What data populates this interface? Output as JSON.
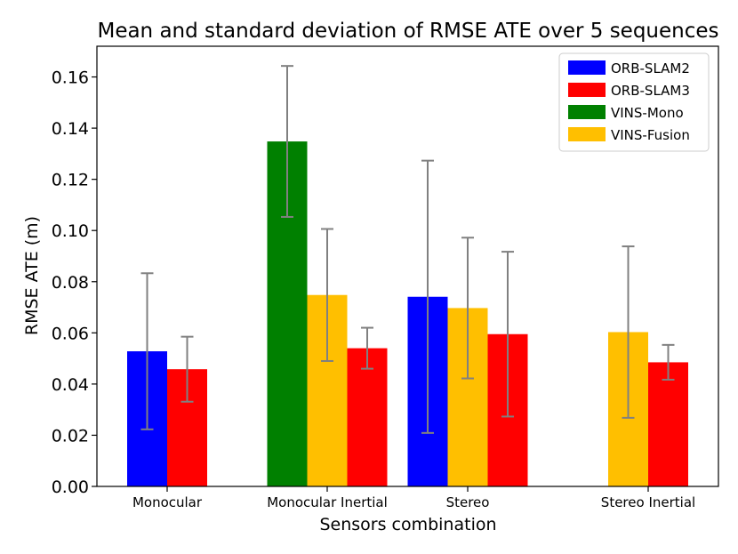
{
  "chart_data": {
    "type": "bar",
    "title": "Mean and standard deviation of RMSE ATE over 5 sequences",
    "xlabel": "Sensors combination",
    "ylabel": "RMSE ATE (m)",
    "ylim": [
      0,
      0.172
    ],
    "yticks": [
      "0.00",
      "0.02",
      "0.04",
      "0.06",
      "0.08",
      "0.10",
      "0.12",
      "0.14",
      "0.16"
    ],
    "grid": false,
    "legend_position": "top-right",
    "categories": [
      "Monocular",
      "Monocular Inertial",
      "Stereo",
      "Stereo Inertial"
    ],
    "error_bar_color": "#808080",
    "bars": [
      {
        "category": "Monocular",
        "series": "ORB-SLAM2",
        "mean": 0.0528,
        "std": 0.0305
      },
      {
        "category": "Monocular",
        "series": "ORB-SLAM3",
        "mean": 0.0458,
        "std": 0.0127
      },
      {
        "category": "Monocular Inertial",
        "series": "VINS-Mono",
        "mean": 0.1348,
        "std": 0.0295
      },
      {
        "category": "Monocular Inertial",
        "series": "VINS-Fusion",
        "mean": 0.0748,
        "std": 0.0258
      },
      {
        "category": "Monocular Inertial",
        "series": "ORB-SLAM3",
        "mean": 0.054,
        "std": 0.008
      },
      {
        "category": "Stereo",
        "series": "ORB-SLAM2",
        "mean": 0.0741,
        "std": 0.0532
      },
      {
        "category": "Stereo",
        "series": "VINS-Fusion",
        "mean": 0.0697,
        "std": 0.0275
      },
      {
        "category": "Stereo",
        "series": "ORB-SLAM3",
        "mean": 0.0595,
        "std": 0.0322
      },
      {
        "category": "Stereo Inertial",
        "series": "VINS-Fusion",
        "mean": 0.0603,
        "std": 0.0335
      },
      {
        "category": "Stereo Inertial",
        "series": "ORB-SLAM3",
        "mean": 0.0485,
        "std": 0.0068
      }
    ],
    "legend": [
      {
        "name": "ORB-SLAM2",
        "color": "#0000ff"
      },
      {
        "name": "ORB-SLAM3",
        "color": "#ff0000"
      },
      {
        "name": "VINS-Mono",
        "color": "#008000"
      },
      {
        "name": "VINS-Fusion",
        "color": "#ffbf00"
      }
    ]
  }
}
